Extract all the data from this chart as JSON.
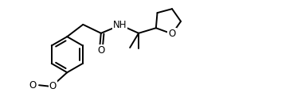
{
  "bg_color": "#ffffff",
  "lw": 1.4,
  "fs": 8.5,
  "fig_w": 3.83,
  "fig_h": 1.41,
  "dpi": 100,
  "xlim": [
    0,
    10.5
  ],
  "ylim": [
    0.2,
    4.0
  ]
}
